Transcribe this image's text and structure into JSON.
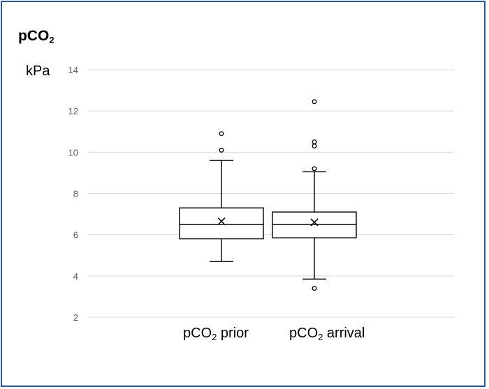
{
  "chart_data": {
    "type": "box",
    "title": {
      "main": "pCO",
      "sub": "2"
    },
    "ylabel": "kPa",
    "ylim": [
      2,
      14
    ],
    "yticks": [
      2,
      4,
      6,
      8,
      10,
      12,
      14
    ],
    "grid": true,
    "categories": [
      {
        "main": "pCO",
        "sub": "2",
        "rest": " prior"
      },
      {
        "main": "pCO",
        "sub": "2",
        "rest": " arrival"
      }
    ],
    "series": [
      {
        "whisker_low": 4.7,
        "q1": 5.8,
        "median": 6.5,
        "q3": 7.3,
        "whisker_high": 9.6,
        "mean": 6.65,
        "outliers": [
          10.1,
          10.9
        ]
      },
      {
        "whisker_low": 3.85,
        "q1": 5.85,
        "median": 6.5,
        "q3": 7.1,
        "whisker_high": 9.05,
        "mean": 6.6,
        "outliers": [
          3.4,
          9.2,
          10.3,
          10.5,
          12.45
        ]
      }
    ],
    "colors": {
      "line": "#000000",
      "grid": "#d9d9d9",
      "frame": "#2f5597",
      "tick": "#595959"
    }
  }
}
